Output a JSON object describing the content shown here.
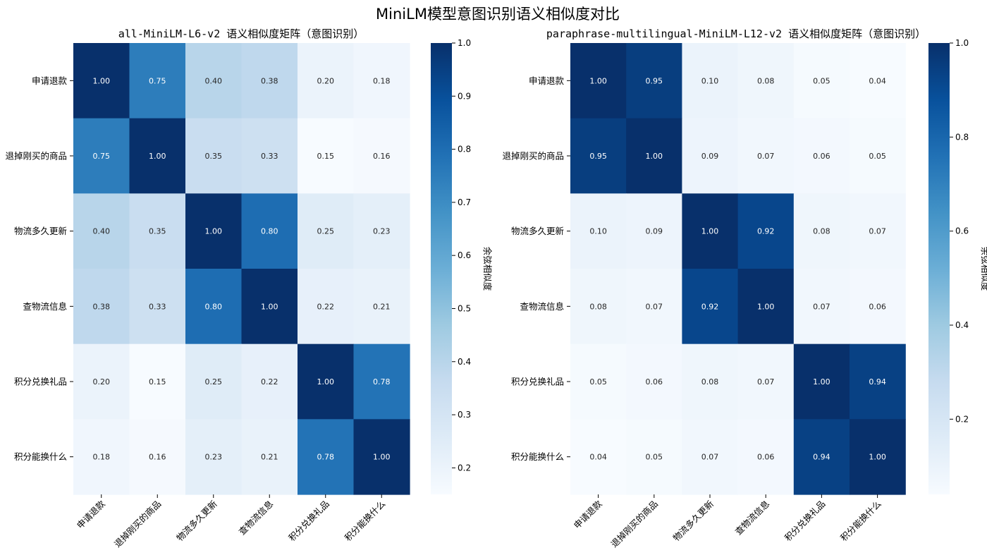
{
  "title": "MiniLM模型意图识别语义相似度对比",
  "chart_data": [
    {
      "type": "heatmap",
      "title": "all-MiniLM-L6-v2 语义相似度矩阵（意图识别）",
      "labels": [
        "申请退款",
        "退掉刚买的商品",
        "物流多久更新",
        "查物流信息",
        "积分兑换礼品",
        "积分能换什么"
      ],
      "matrix": [
        [
          1.0,
          0.75,
          0.4,
          0.38,
          0.2,
          0.18
        ],
        [
          0.75,
          1.0,
          0.35,
          0.33,
          0.15,
          0.16
        ],
        [
          0.4,
          0.35,
          1.0,
          0.8,
          0.25,
          0.23
        ],
        [
          0.38,
          0.33,
          0.8,
          1.0,
          0.22,
          0.21
        ],
        [
          0.2,
          0.15,
          0.25,
          0.22,
          1.0,
          0.78
        ],
        [
          0.18,
          0.16,
          0.23,
          0.21,
          0.78,
          1.0
        ]
      ],
      "value_labels": [
        [
          "1.00",
          "0.75",
          "0.40",
          "0.38",
          "0.20",
          "0.18"
        ],
        [
          "0.75",
          "1.00",
          "0.35",
          "0.33",
          "0.15",
          "0.16"
        ],
        [
          "0.40",
          "0.35",
          "1.00",
          "0.80",
          "0.25",
          "0.23"
        ],
        [
          "0.38",
          "0.33",
          "0.80",
          "1.00",
          "0.22",
          "0.21"
        ],
        [
          "0.20",
          "0.15",
          "0.25",
          "0.22",
          "1.00",
          "0.78"
        ],
        [
          "0.18",
          "0.16",
          "0.23",
          "0.21",
          "0.78",
          "1.00"
        ]
      ],
      "colorbar": {
        "label": "余弦相似度",
        "range": [
          0.15,
          1.0
        ],
        "ticks": [
          0.2,
          0.3,
          0.4,
          0.5,
          0.6,
          0.7,
          0.8,
          0.9,
          1.0
        ],
        "tick_labels": [
          "0.2",
          "0.3",
          "0.4",
          "0.5",
          "0.6",
          "0.7",
          "0.8",
          "0.9",
          "1.0"
        ]
      },
      "colormap": "Blues"
    },
    {
      "type": "heatmap",
      "title": "paraphrase-multilingual-MiniLM-L12-v2 语义相似度矩阵（意图识别）",
      "labels": [
        "申请退款",
        "退掉刚买的商品",
        "物流多久更新",
        "查物流信息",
        "积分兑换礼品",
        "积分能换什么"
      ],
      "matrix": [
        [
          1.0,
          0.95,
          0.1,
          0.08,
          0.05,
          0.04
        ],
        [
          0.95,
          1.0,
          0.09,
          0.07,
          0.06,
          0.05
        ],
        [
          0.1,
          0.09,
          1.0,
          0.92,
          0.08,
          0.07
        ],
        [
          0.08,
          0.07,
          0.92,
          1.0,
          0.07,
          0.06
        ],
        [
          0.05,
          0.06,
          0.08,
          0.07,
          1.0,
          0.94
        ],
        [
          0.04,
          0.05,
          0.07,
          0.06,
          0.94,
          1.0
        ]
      ],
      "value_labels": [
        [
          "1.00",
          "0.95",
          "0.10",
          "0.08",
          "0.05",
          "0.04"
        ],
        [
          "0.95",
          "1.00",
          "0.09",
          "0.07",
          "0.06",
          "0.05"
        ],
        [
          "0.10",
          "0.09",
          "1.00",
          "0.92",
          "0.08",
          "0.07"
        ],
        [
          "0.08",
          "0.07",
          "0.92",
          "1.00",
          "0.07",
          "0.06"
        ],
        [
          "0.05",
          "0.06",
          "0.08",
          "0.07",
          "1.00",
          "0.94"
        ],
        [
          "0.04",
          "0.05",
          "0.07",
          "0.06",
          "0.94",
          "1.00"
        ]
      ],
      "colorbar": {
        "label": "余弦相似度",
        "range": [
          0.04,
          1.0
        ],
        "ticks": [
          0.2,
          0.4,
          0.6,
          0.8,
          1.0
        ],
        "tick_labels": [
          "0.2",
          "0.4",
          "0.6",
          "0.8",
          "1.0"
        ]
      },
      "colormap": "Blues"
    }
  ]
}
